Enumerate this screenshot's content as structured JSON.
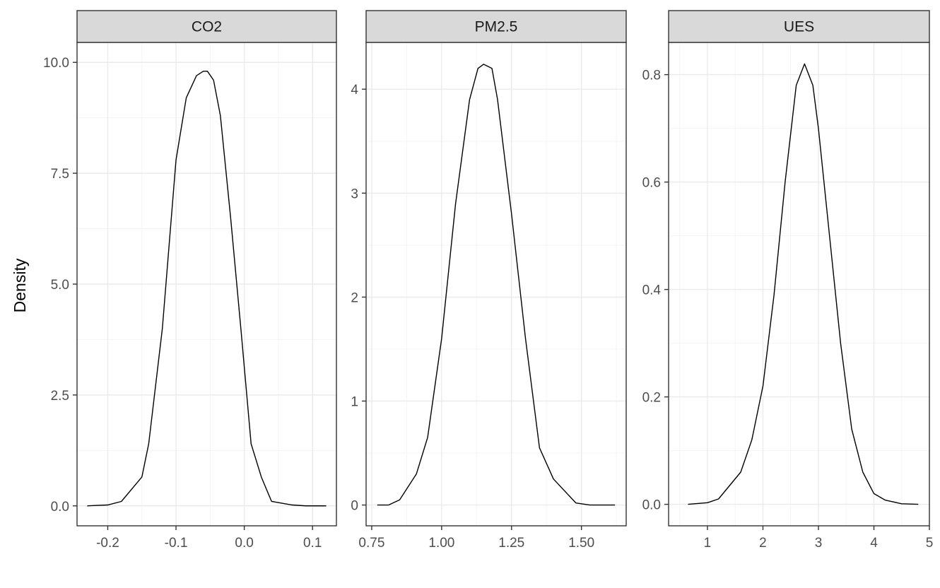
{
  "chart_data": {
    "type": "line",
    "ylabel": "Density",
    "xlabel": "",
    "grid": true,
    "facets": [
      {
        "name": "CO2",
        "x": [
          -0.23,
          -0.2,
          -0.18,
          -0.15,
          -0.14,
          -0.12,
          -0.1,
          -0.085,
          -0.07,
          -0.06,
          -0.054,
          -0.045,
          -0.035,
          -0.02,
          -0.005,
          0.01,
          0.025,
          0.04,
          0.07,
          0.09,
          0.12
        ],
        "y": [
          0.0,
          0.02,
          0.1,
          0.65,
          1.4,
          4.0,
          7.8,
          9.2,
          9.7,
          9.8,
          9.8,
          9.6,
          8.8,
          6.5,
          4.0,
          1.4,
          0.65,
          0.1,
          0.02,
          0.0,
          0.0
        ],
        "xlim": [
          -0.245,
          0.135
        ],
        "ylim": [
          -0.45,
          10.45
        ],
        "xticks": [
          -0.2,
          -0.1,
          0.0,
          0.1
        ],
        "xtick_labels": [
          "-0.2",
          "-0.1",
          "0.0",
          "0.1"
        ],
        "yticks": [
          0.0,
          2.5,
          5.0,
          7.5,
          10.0
        ],
        "ytick_labels": [
          "0.0",
          "2.5",
          "5.0",
          "7.5",
          "10.0"
        ]
      },
      {
        "name": "PM2.5",
        "x": [
          0.77,
          0.81,
          0.85,
          0.91,
          0.95,
          1.0,
          1.05,
          1.1,
          1.13,
          1.15,
          1.18,
          1.2,
          1.25,
          1.3,
          1.35,
          1.4,
          1.48,
          1.53,
          1.62
        ],
        "y": [
          0.0,
          0.0,
          0.05,
          0.3,
          0.65,
          1.6,
          2.9,
          3.9,
          4.2,
          4.24,
          4.2,
          3.9,
          2.8,
          1.6,
          0.55,
          0.25,
          0.02,
          0.0,
          0.0
        ],
        "xlim": [
          0.73,
          1.66
        ],
        "ylim": [
          -0.2,
          4.45
        ],
        "xticks": [
          0.75,
          1.0,
          1.25,
          1.5
        ],
        "xtick_labels": [
          "0.75",
          "1.00",
          "1.25",
          "1.50"
        ],
        "yticks": [
          0,
          1,
          2,
          3,
          4
        ],
        "ytick_labels": [
          "0",
          "1",
          "2",
          "3",
          "4"
        ]
      },
      {
        "name": "UES",
        "x": [
          0.65,
          1.0,
          1.2,
          1.6,
          1.8,
          2.0,
          2.2,
          2.4,
          2.6,
          2.75,
          2.9,
          3.0,
          3.2,
          3.4,
          3.6,
          3.8,
          4.0,
          4.2,
          4.5,
          4.8
        ],
        "y": [
          0.0,
          0.003,
          0.01,
          0.06,
          0.12,
          0.22,
          0.39,
          0.6,
          0.78,
          0.82,
          0.78,
          0.7,
          0.5,
          0.3,
          0.14,
          0.06,
          0.02,
          0.008,
          0.001,
          0.0
        ],
        "xlim": [
          0.3,
          5.0
        ],
        "ylim": [
          -0.04,
          0.86
        ],
        "xticks": [
          1,
          2,
          3,
          4,
          5
        ],
        "xtick_labels": [
          "1",
          "2",
          "3",
          "4",
          "5"
        ],
        "yticks": [
          0.0,
          0.2,
          0.4,
          0.6,
          0.8
        ],
        "ytick_labels": [
          "0.0",
          "0.2",
          "0.4",
          "0.6",
          "0.8"
        ]
      }
    ]
  },
  "colors": {
    "line": "#000000",
    "strip_fill": "#d9d9d9",
    "grid_major": "#ebebeb",
    "grid_minor": "#f5f5f5",
    "panel_border": "#333333",
    "tick_text": "#4d4d4d"
  }
}
